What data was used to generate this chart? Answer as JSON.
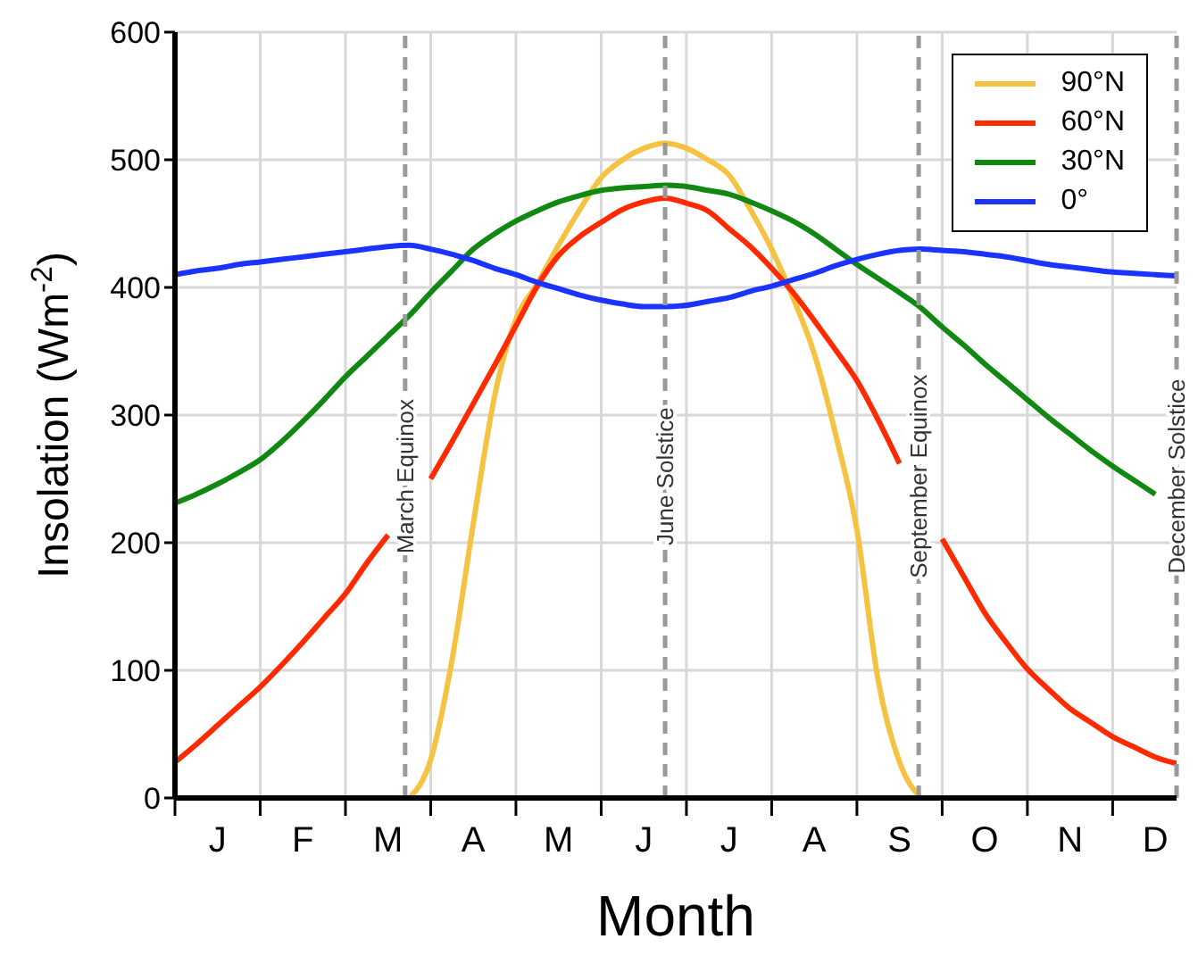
{
  "chart_data": {
    "type": "line",
    "xlabel": "Month",
    "ylabel": "Insolation  (Wm$^{-2}$)",
    "categories": [
      null,
      null,
      "J",
      null,
      null,
      null,
      "F",
      null,
      null,
      null,
      "M",
      null,
      null,
      null,
      "A",
      null,
      null,
      null,
      "M",
      null,
      null,
      null,
      "J",
      null,
      null,
      null,
      "J",
      null,
      null,
      null,
      "A",
      null,
      null,
      null,
      "S",
      null,
      null,
      null,
      "O",
      null,
      null,
      null,
      "N",
      null,
      null,
      null,
      "D",
      null
    ],
    "ylim": [
      0,
      600
    ],
    "yticks": [
      0,
      100,
      200,
      300,
      400,
      500,
      600
    ],
    "grid": true,
    "legend": "top right",
    "marker": "none",
    "line_style": "solid",
    "series": [
      {
        "name": "90°N",
        "color": "#f5c242",
        "values": [
          null,
          null,
          null,
          null,
          null,
          null,
          null,
          null,
          null,
          null,
          null,
          0,
          30,
          108,
          215,
          315,
          375,
          403,
          433,
          461,
          486,
          500,
          509,
          513,
          509,
          500,
          488,
          461,
          430,
          392,
          348,
          285,
          210,
          92,
          28,
          0,
          null,
          null,
          null,
          null,
          null,
          null,
          null,
          null,
          null,
          null,
          null,
          null
        ]
      },
      {
        "name": "60°N",
        "color": "#ff2a00",
        "values": [
          28,
          42,
          57,
          72,
          87,
          104,
          122,
          141,
          160,
          184,
          206,
          null,
          250,
          279,
          309,
          339,
          370,
          401,
          425,
          440,
          451,
          461,
          467,
          470,
          466,
          460,
          446,
          432,
          415,
          396,
          374,
          351,
          327,
          296,
          262,
          null,
          203,
          174,
          145,
          122,
          101,
          85,
          70,
          59,
          48,
          40,
          32,
          27
        ]
      },
      {
        "name": "30°N",
        "color": "#118811",
        "values": [
          231,
          238,
          246,
          255,
          265,
          279,
          295,
          312,
          330,
          346,
          362,
          378,
          396,
          413,
          430,
          442,
          452,
          460,
          467,
          472,
          476,
          478,
          479,
          480,
          479,
          476,
          473,
          467,
          460,
          452,
          442,
          430,
          418,
          407,
          396,
          384,
          369,
          355,
          340,
          326,
          312,
          298,
          285,
          272,
          260,
          249,
          238,
          null
        ]
      },
      {
        "name": "0°",
        "color": "#1a33ff",
        "values": [
          410,
          413,
          415,
          418,
          420,
          422,
          424,
          426,
          428,
          430,
          432,
          433,
          430,
          426,
          421,
          415,
          410,
          404,
          399,
          394,
          390,
          387,
          385,
          385,
          386,
          389,
          392,
          397,
          401,
          406,
          411,
          417,
          422,
          426,
          429,
          430,
          429,
          428,
          426,
          424,
          421,
          418,
          416,
          414,
          412,
          411,
          410,
          409
        ]
      }
    ],
    "annotations": [
      "March Equinox",
      "June Solstice",
      "September Equinox",
      "December Solstice"
    ]
  }
}
